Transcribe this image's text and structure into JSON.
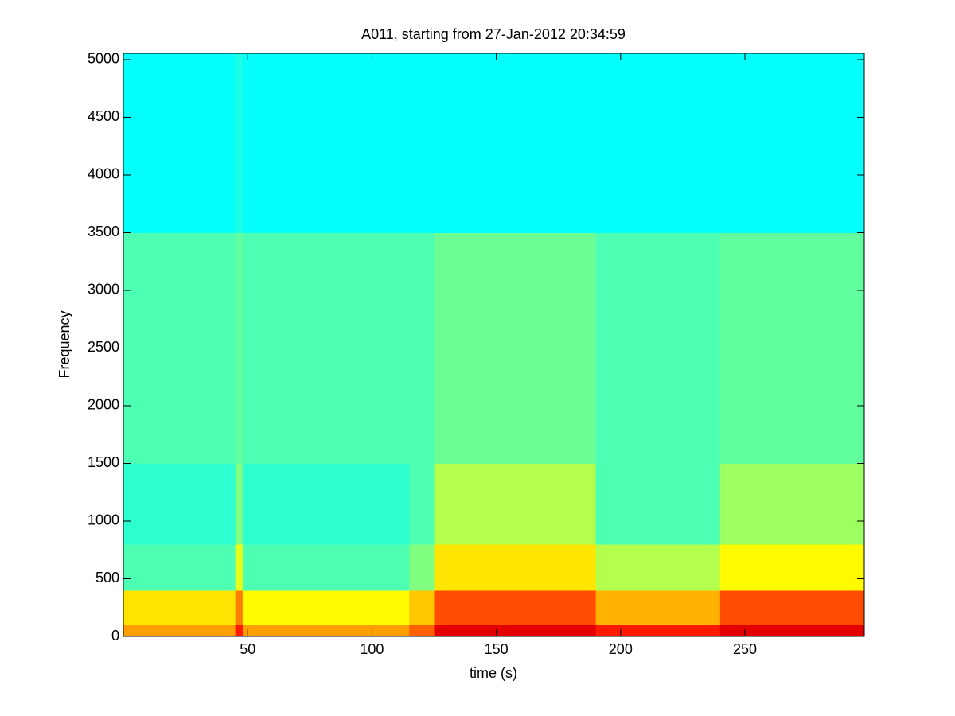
{
  "chart_data": {
    "type": "heatmap",
    "title": "A011, starting from 27-Jan-2012 20:34:59",
    "xlabel": "time (s)",
    "ylabel": "Frequency",
    "colormap": "jet",
    "x": [
      0,
      45,
      48,
      115,
      125,
      190,
      240,
      298
    ],
    "y": [
      0,
      100,
      400,
      800,
      1500,
      3500,
      5055
    ],
    "z": [
      [
        0.72,
        0.85,
        0.72,
        0.78,
        0.9,
        0.85,
        0.9
      ],
      [
        0.65,
        0.75,
        0.63,
        0.68,
        0.8,
        0.7,
        0.8
      ],
      [
        0.45,
        0.6,
        0.45,
        0.5,
        0.65,
        0.55,
        0.63
      ],
      [
        0.42,
        0.5,
        0.42,
        0.45,
        0.55,
        0.45,
        0.53
      ],
      [
        0.45,
        0.47,
        0.45,
        0.45,
        0.48,
        0.45,
        0.47
      ],
      [
        0.38,
        0.4,
        0.38,
        0.38,
        0.38,
        0.38,
        0.38
      ]
    ],
    "xlim": [
      0,
      298
    ],
    "ylim": [
      0,
      5055
    ],
    "xticks": [
      50,
      100,
      150,
      200,
      250
    ],
    "yticks": [
      0,
      500,
      1000,
      1500,
      2000,
      2500,
      3000,
      3500,
      4000,
      4500,
      5000
    ]
  }
}
